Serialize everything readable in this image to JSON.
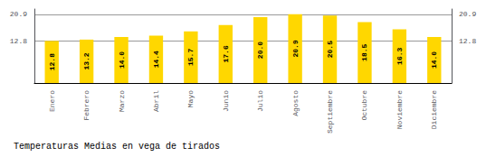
{
  "chart_data": {
    "type": "bar",
    "title": "Temperaturas Medias en vega de tirados",
    "categories": [
      "Enero",
      "Febrero",
      "Marzo",
      "Abril",
      "Mayo",
      "Junio",
      "Julio",
      "Agosto",
      "Septiembre",
      "Octubre",
      "Noviembre",
      "Diciembre"
    ],
    "values": [
      12.8,
      13.2,
      14.0,
      14.4,
      15.7,
      17.6,
      20.0,
      20.9,
      20.5,
      18.5,
      16.3,
      14.0
    ],
    "value_labels": [
      "12.8",
      "13.2",
      "14.0",
      "14.4",
      "15.7",
      "17.6",
      "20.0",
      "20.9",
      "20.5",
      "18.5",
      "16.3",
      "14.0"
    ],
    "data_labels": true,
    "color": "#FFD700",
    "ylim": [
      0,
      22.5
    ],
    "yticks": [
      12.8,
      20.9
    ],
    "y2lim": [
      0,
      22.5
    ],
    "y2ticks": [
      12.8,
      20.9
    ],
    "grid": true
  }
}
